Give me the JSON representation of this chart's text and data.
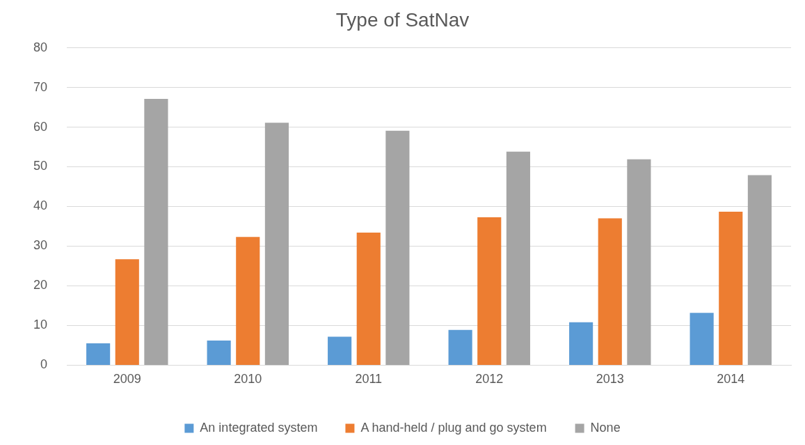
{
  "chart_data": {
    "type": "bar",
    "title": "Type of SatNav",
    "categories": [
      "2009",
      "2010",
      "2011",
      "2012",
      "2013",
      "2014"
    ],
    "series": [
      {
        "name": "An integrated system",
        "color": "#5b9bd5",
        "values": [
          5.5,
          6.2,
          7.2,
          8.9,
          10.8,
          13.2
        ]
      },
      {
        "name": "A hand-held / plug and go system",
        "color": "#ed7d31",
        "values": [
          26.7,
          32.3,
          33.4,
          37.3,
          37.0,
          38.7
        ]
      },
      {
        "name": "None",
        "color": "#a5a5a5",
        "values": [
          67.1,
          61.1,
          59.1,
          53.8,
          51.9,
          47.9
        ]
      }
    ],
    "ylim": [
      0,
      80
    ],
    "yticks": [
      0,
      10,
      20,
      30,
      40,
      50,
      60,
      70,
      80
    ],
    "grid": "y",
    "legend": "bottom"
  }
}
